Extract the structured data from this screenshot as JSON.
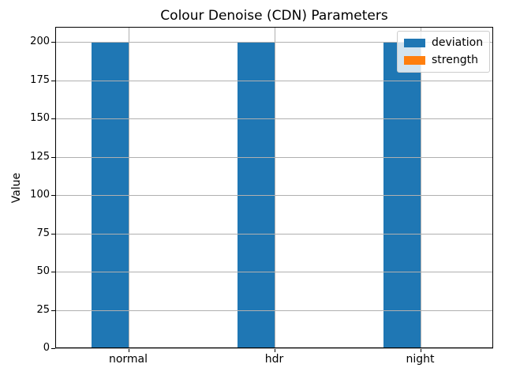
{
  "figure": {
    "background": "#ffffff"
  },
  "chart_data": {
    "type": "bar",
    "title": "Colour Denoise (CDN) Parameters",
    "xlabel": "",
    "ylabel": "Value",
    "categories": [
      "normal",
      "hdr",
      "night"
    ],
    "series": [
      {
        "name": "deviation",
        "color": "#1f77b4",
        "values": [
          200,
          200,
          200
        ]
      },
      {
        "name": "strength",
        "color": "#ff7f0e",
        "values": [
          0,
          0,
          0
        ]
      }
    ],
    "ylim": [
      0,
      210
    ],
    "yticks": [
      0,
      25,
      50,
      75,
      100,
      125,
      150,
      175,
      200
    ],
    "grid": true,
    "grid_color": "#b0b0b0",
    "axis_color": "#000000",
    "legend": {
      "position": "upper right",
      "entries": [
        "deviation",
        "strength"
      ]
    },
    "bar_width_fraction": 0.25
  }
}
